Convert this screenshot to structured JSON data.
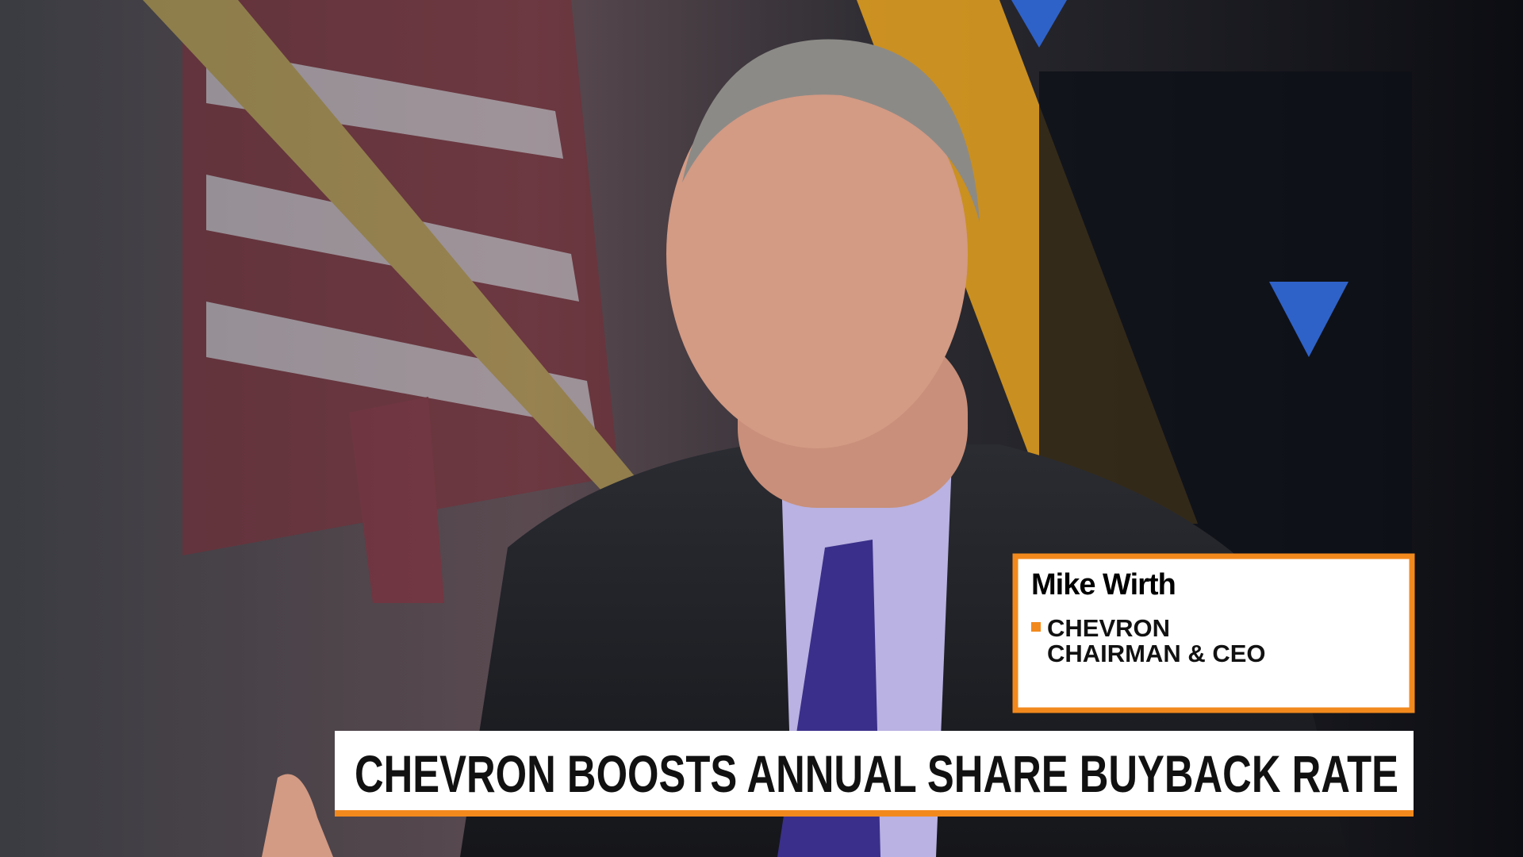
{
  "lower_third": {
    "name": "Mike Wirth",
    "company": "CHEVRON",
    "role": "CHAIRMAN & CEO"
  },
  "headline": "CHEVRON BOOSTS ANNUAL SHARE BUYBACK RATE"
}
